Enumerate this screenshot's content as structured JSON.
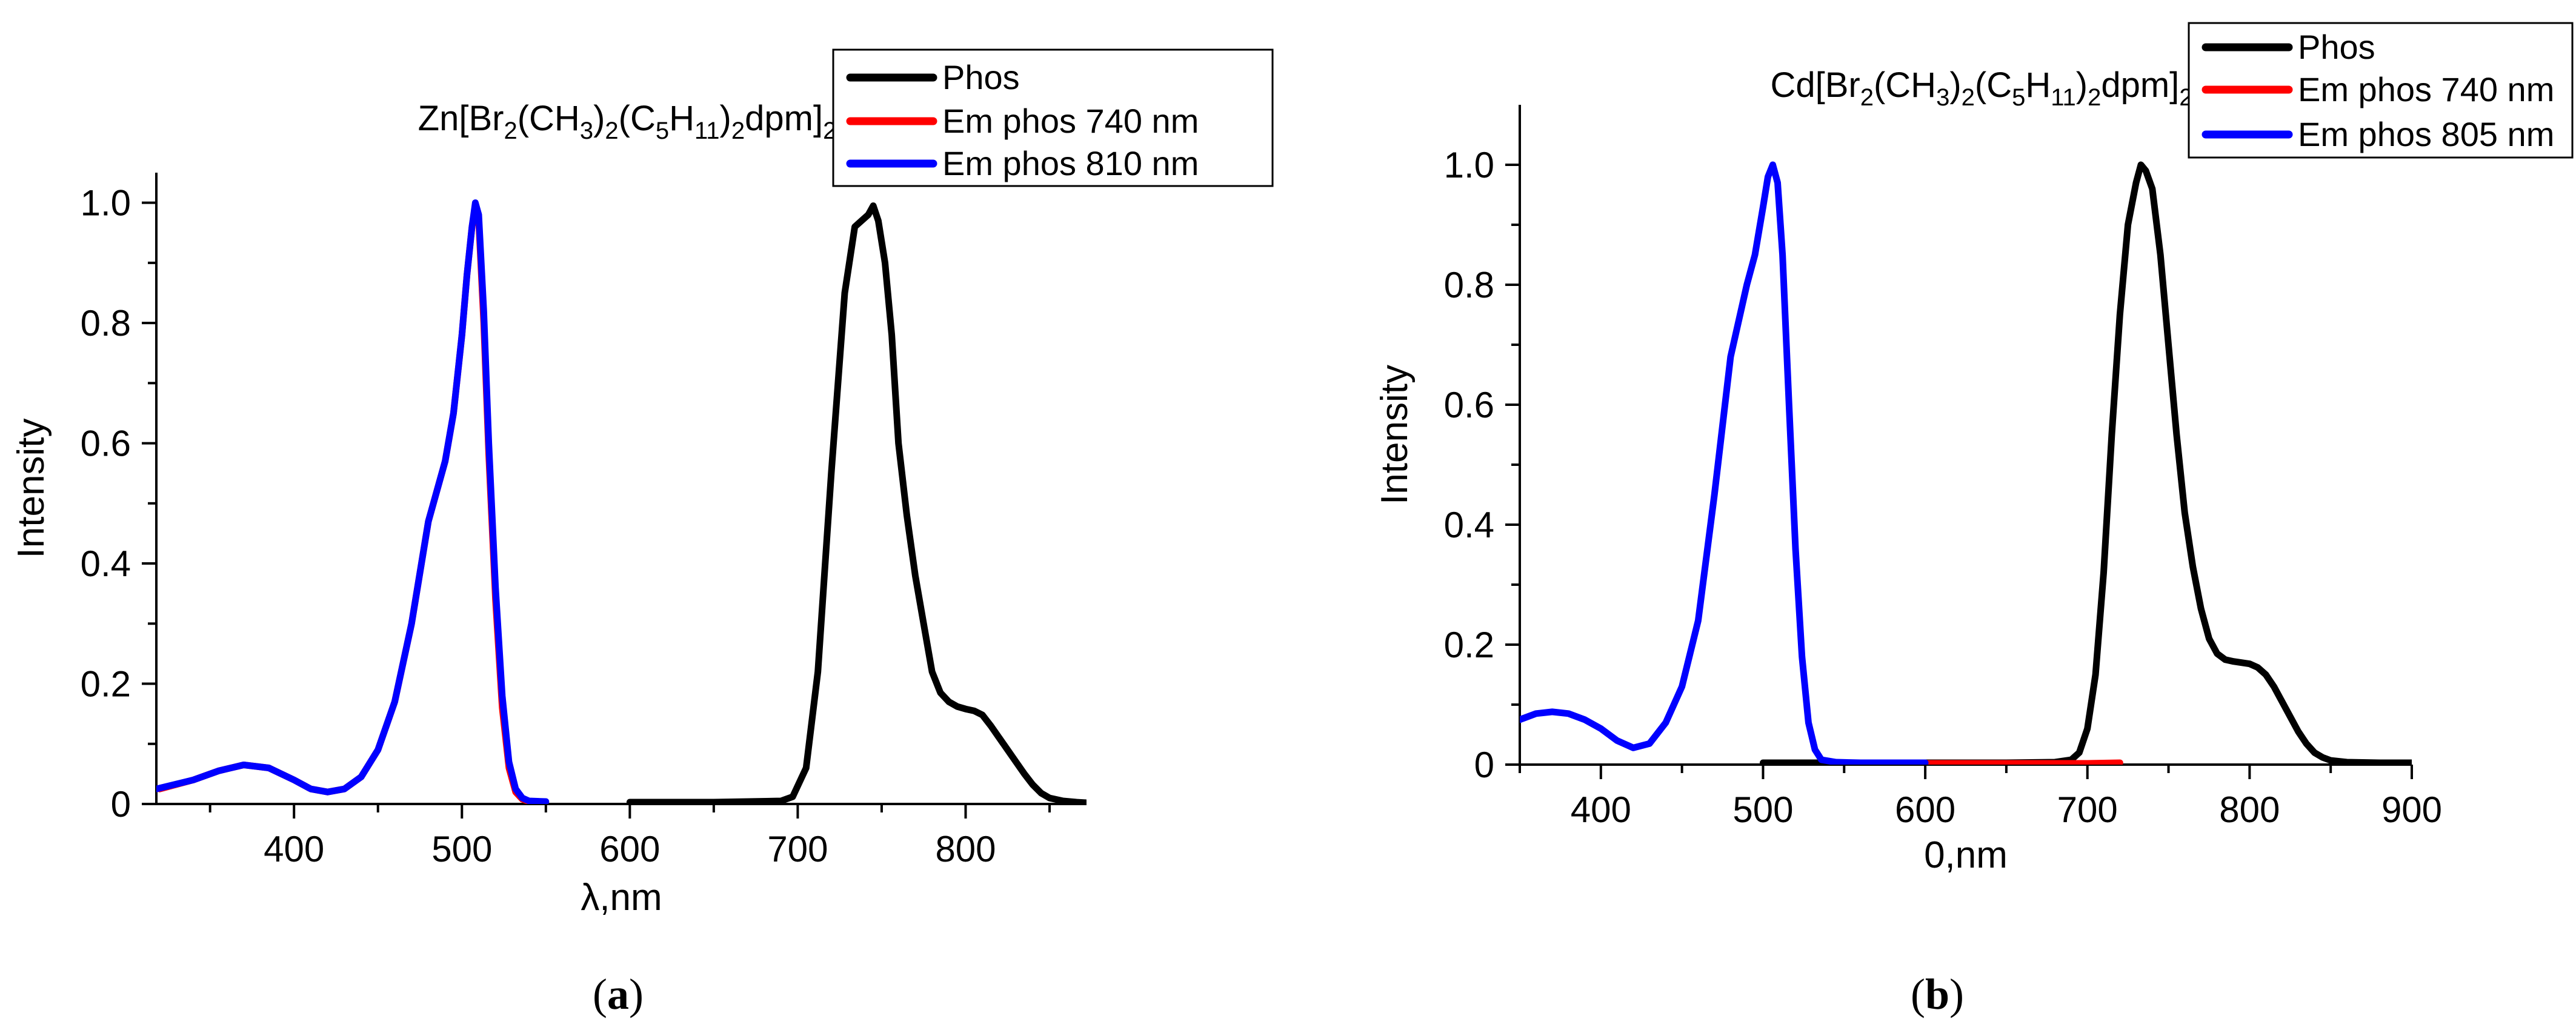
{
  "chart_data": [
    {
      "type": "line",
      "title_parts": [
        [
          "Zn[Br",
          ""
        ],
        [
          "2",
          "sub"
        ],
        [
          "(CH",
          ""
        ],
        [
          "3",
          "sub"
        ],
        [
          ")",
          ""
        ],
        [
          "2",
          "sub"
        ],
        [
          "(C",
          ""
        ],
        [
          "5",
          "sub"
        ],
        [
          "H",
          ""
        ],
        [
          "11",
          "sub"
        ],
        [
          ")",
          ""
        ],
        [
          "2",
          "sub"
        ],
        [
          "dpm]",
          ""
        ],
        [
          "2",
          "sub"
        ]
      ],
      "xlabel": "λ,nm",
      "ylabel": "Intensity",
      "xlim": [
        318,
        872
      ],
      "ylim": [
        0,
        1.05
      ],
      "xticks": [
        400,
        500,
        600,
        700,
        800
      ],
      "xtick_labels": [
        "400",
        "500",
        "600",
        "700",
        "800"
      ],
      "yticks": [
        0,
        0.2,
        0.4,
        0.6,
        0.8,
        1.0
      ],
      "ytick_labels": [
        "0",
        "0.2",
        "0.4",
        "0.6",
        "0.8",
        "1.0"
      ],
      "caption": {
        "open": "(",
        "letter": "a",
        "close": ")"
      },
      "legend": {
        "position": "top-right"
      },
      "series": [
        {
          "name": "Phos",
          "color": "#000000",
          "x": [
            600,
            650,
            690,
            697,
            705,
            712,
            720,
            728,
            734,
            738,
            742,
            745,
            748,
            752,
            756,
            760,
            765,
            770,
            775,
            780,
            785,
            790,
            795,
            800,
            805,
            810,
            815,
            820,
            825,
            830,
            835,
            840,
            845,
            850,
            858,
            866,
            872
          ],
          "y": [
            0.003,
            0.003,
            0.005,
            0.012,
            0.06,
            0.22,
            0.55,
            0.85,
            0.96,
            0.97,
            0.98,
            0.995,
            0.97,
            0.9,
            0.78,
            0.6,
            0.48,
            0.38,
            0.3,
            0.22,
            0.185,
            0.17,
            0.162,
            0.158,
            0.155,
            0.148,
            0.13,
            0.11,
            0.09,
            0.07,
            0.05,
            0.032,
            0.018,
            0.01,
            0.005,
            0.003,
            0.002
          ]
        },
        {
          "name": "Em phos 740 nm",
          "color": "#ff0000",
          "x": [
            320,
            340,
            355,
            370,
            385,
            400,
            410,
            420,
            430,
            440,
            450,
            460,
            470,
            480,
            490,
            495,
            500,
            503,
            506,
            508,
            510,
            513,
            516,
            520,
            524,
            528,
            532,
            536,
            540,
            548
          ],
          "y": [
            0.025,
            0.04,
            0.055,
            0.065,
            0.06,
            0.04,
            0.025,
            0.02,
            0.025,
            0.045,
            0.09,
            0.17,
            0.3,
            0.47,
            0.57,
            0.65,
            0.78,
            0.88,
            0.96,
            0.995,
            0.97,
            0.8,
            0.58,
            0.34,
            0.16,
            0.06,
            0.02,
            0.008,
            0.004,
            0.003
          ]
        },
        {
          "name": "Em phos 810 nm",
          "color": "#0000ff",
          "x": [
            318,
            340,
            355,
            370,
            385,
            400,
            410,
            420,
            430,
            440,
            450,
            460,
            470,
            480,
            490,
            495,
            500,
            503,
            506,
            508,
            510,
            513,
            516,
            520,
            524,
            528,
            532,
            536,
            540,
            550
          ],
          "y": [
            0.025,
            0.04,
            0.055,
            0.065,
            0.06,
            0.04,
            0.025,
            0.02,
            0.025,
            0.045,
            0.09,
            0.17,
            0.3,
            0.47,
            0.57,
            0.65,
            0.78,
            0.88,
            0.96,
            1.0,
            0.98,
            0.82,
            0.6,
            0.36,
            0.18,
            0.07,
            0.025,
            0.01,
            0.005,
            0.004
          ]
        }
      ]
    },
    {
      "type": "line",
      "title_parts": [
        [
          "Cd[Br",
          ""
        ],
        [
          "2",
          "sub"
        ],
        [
          "(CH",
          ""
        ],
        [
          "3",
          "sub"
        ],
        [
          ")",
          ""
        ],
        [
          "2",
          "sub"
        ],
        [
          "(C",
          ""
        ],
        [
          "5",
          "sub"
        ],
        [
          "H",
          ""
        ],
        [
          "11",
          "sub"
        ],
        [
          ")",
          ""
        ],
        [
          "2",
          "sub"
        ],
        [
          "dpm]",
          ""
        ],
        [
          "2",
          "sub"
        ]
      ],
      "xlabel": "0,nm",
      "ylabel": "Intensity",
      "xlim": [
        350,
        900
      ],
      "ylim": [
        0,
        1.1
      ],
      "xticks": [
        400,
        500,
        600,
        700,
        800,
        900
      ],
      "xtick_labels": [
        "400",
        "500",
        "600",
        "700",
        "800",
        "900"
      ],
      "yticks": [
        0,
        0.2,
        0.4,
        0.6,
        0.8,
        1.0
      ],
      "ytick_labels": [
        "0",
        "0.2",
        "0.4",
        "0.6",
        "0.8",
        "1.0"
      ],
      "caption": {
        "open": "(",
        "letter": "b",
        "close": ")"
      },
      "legend": {
        "position": "top-right"
      },
      "series": [
        {
          "name": "Phos",
          "color": "#000000",
          "x": [
            500,
            550,
            600,
            650,
            680,
            690,
            695,
            700,
            705,
            710,
            715,
            720,
            725,
            730,
            733,
            736,
            740,
            745,
            750,
            755,
            760,
            765,
            770,
            775,
            780,
            785,
            790,
            795,
            800,
            805,
            810,
            815,
            820,
            825,
            830,
            835,
            840,
            845,
            850,
            860,
            880,
            900
          ],
          "y": [
            0.003,
            0.003,
            0.003,
            0.003,
            0.004,
            0.008,
            0.02,
            0.06,
            0.15,
            0.32,
            0.55,
            0.75,
            0.9,
            0.97,
            1.0,
            0.99,
            0.96,
            0.85,
            0.7,
            0.55,
            0.42,
            0.33,
            0.26,
            0.21,
            0.185,
            0.175,
            0.172,
            0.17,
            0.168,
            0.162,
            0.15,
            0.13,
            0.105,
            0.08,
            0.055,
            0.035,
            0.02,
            0.012,
            0.007,
            0.004,
            0.003,
            0.003
          ]
        },
        {
          "name": "Em phos 740 nm",
          "color": "#ff0000",
          "x": [
            600,
            620,
            640,
            660,
            680,
            700,
            720
          ],
          "y": [
            0.002,
            0.002,
            0.002,
            0.002,
            0.002,
            0.002,
            0.003
          ]
        },
        {
          "name": "Em phos 805 nm",
          "color": "#0000ff",
          "x": [
            350,
            360,
            370,
            380,
            390,
            400,
            410,
            420,
            430,
            440,
            450,
            460,
            470,
            480,
            490,
            495,
            500,
            503,
            506,
            509,
            512,
            516,
            520,
            524,
            528,
            532,
            536,
            545,
            560,
            580,
            600
          ],
          "y": [
            0.075,
            0.085,
            0.088,
            0.085,
            0.075,
            0.06,
            0.04,
            0.028,
            0.035,
            0.07,
            0.13,
            0.24,
            0.45,
            0.68,
            0.8,
            0.85,
            0.93,
            0.98,
            1.0,
            0.97,
            0.85,
            0.6,
            0.36,
            0.18,
            0.07,
            0.025,
            0.008,
            0.004,
            0.003,
            0.003,
            0.003
          ]
        }
      ]
    }
  ]
}
